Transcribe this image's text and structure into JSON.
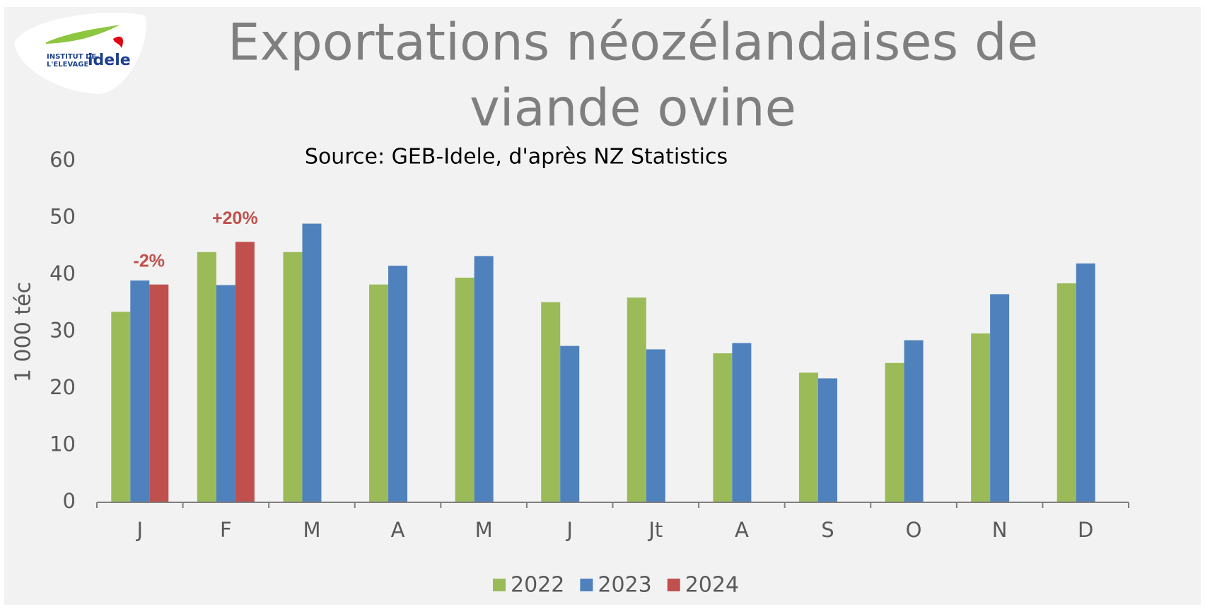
{
  "logo": {
    "line1": "INSTITUT DE",
    "line2": "L'ELEVAGE",
    "brand": "idele"
  },
  "chart_data": {
    "type": "bar",
    "title": [
      "Exportations néozélandaises de",
      "viande ovine"
    ],
    "subtitle": "Source: GEB-Idele, d'après NZ Statistics",
    "y_label": "1 000 téc",
    "categories": [
      "J",
      "F",
      "M",
      "A",
      "M",
      "J",
      "Jt",
      "A",
      "S",
      "O",
      "N",
      "D"
    ],
    "series": [
      {
        "name": "2022",
        "color": "#9bbb59",
        "values": [
          33.5,
          44,
          44,
          38.3,
          39.5,
          35.2,
          36,
          26.2,
          22.8,
          24.5,
          29.7,
          38.5
        ]
      },
      {
        "name": "2023",
        "color": "#4f81bd",
        "values": [
          39,
          38.2,
          49,
          41.6,
          43.3,
          27.5,
          26.9,
          28,
          21.8,
          28.5,
          36.6,
          42
        ]
      },
      {
        "name": "2024",
        "color": "#c0504d",
        "values": [
          38.3,
          45.8,
          null,
          null,
          null,
          null,
          null,
          null,
          null,
          null,
          null,
          null
        ]
      }
    ],
    "annotations": [
      "-2%",
      "+20%"
    ],
    "annotation_color": "#c0504d",
    "ylim": [
      0,
      60
    ],
    "yticks": [
      0,
      10,
      20,
      30,
      40,
      50,
      60
    ],
    "grid": false,
    "legend": "bottom"
  }
}
